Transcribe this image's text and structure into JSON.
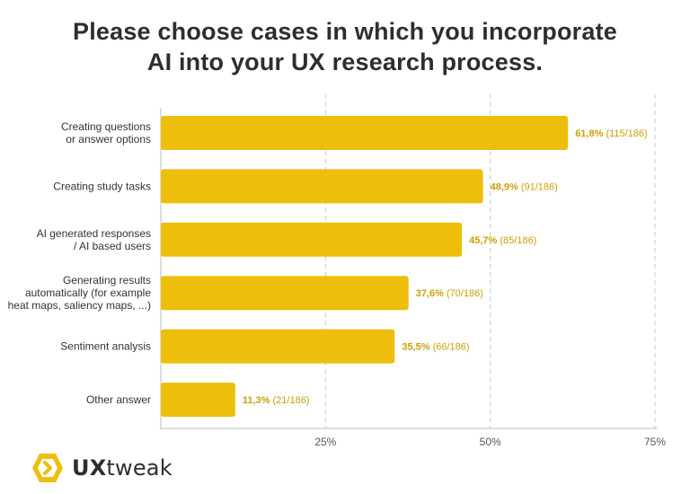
{
  "title": {
    "line1": "Please choose cases in which you incorporate",
    "line2": "AI into your UX research process."
  },
  "brand": {
    "name_bold": "UX",
    "name_light": "tweak"
  },
  "colors": {
    "bar": "#EDBE0C",
    "label_value": "#C9A006",
    "grid": "#C8C8C8",
    "text": "#333333"
  },
  "chart_data": {
    "type": "bar",
    "orientation": "horizontal",
    "title": "Please choose cases in which you incorporate AI into your UX research process.",
    "xlabel": "",
    "ylabel": "",
    "xlim": [
      0,
      75
    ],
    "ticks": [
      "25%",
      "50%",
      "75%"
    ],
    "tick_values": [
      25,
      50,
      75
    ],
    "categories": [
      [
        "Creating questions",
        "or answer options"
      ],
      [
        "Creating study tasks"
      ],
      [
        "AI generated responses",
        "/ AI based users"
      ],
      [
        "Generating results",
        "automatically (for example",
        "heat maps, saliency maps, ...)"
      ],
      [
        "Sentiment analysis"
      ],
      [
        "Other answer"
      ]
    ],
    "values": [
      61.8,
      48.9,
      45.7,
      37.6,
      35.5,
      11.3
    ],
    "value_labels": [
      "61,8%",
      "48,9%",
      "45,7%",
      "37,6%",
      "35,5%",
      "11,3%"
    ],
    "count_labels": [
      "(115/186)",
      "(91/186)",
      "(85/186)",
      "(70/186)",
      "(66/186)",
      "(21/186)"
    ]
  }
}
